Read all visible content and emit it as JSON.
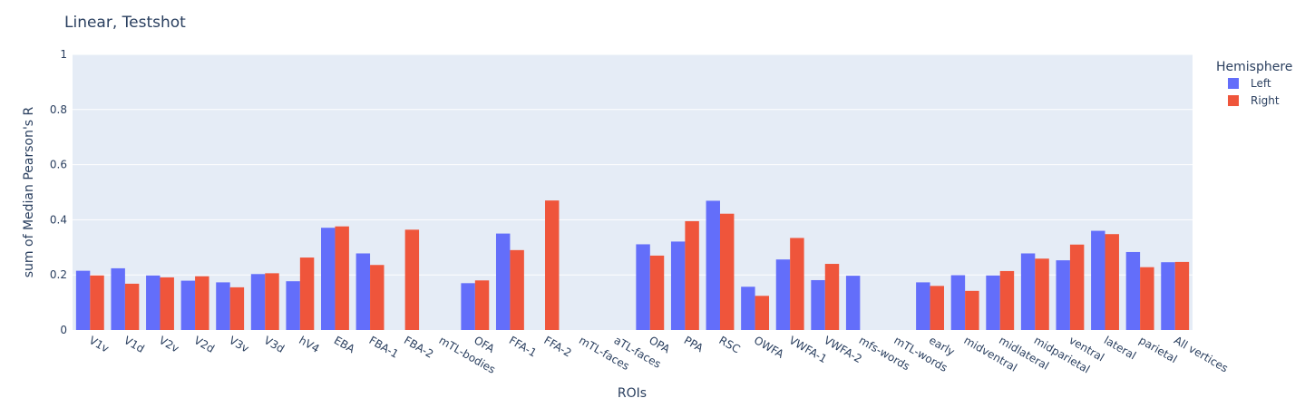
{
  "chart_data": {
    "type": "bar",
    "title": "Linear, Testshot",
    "xlabel": "ROIs",
    "ylabel": "sum of Median Pearson's R",
    "ylim": [
      0,
      1
    ],
    "yticks": [
      0,
      0.2,
      0.4,
      0.6,
      0.8,
      1
    ],
    "ytick_labels": [
      "0",
      "0.2",
      "0.4",
      "0.6",
      "0.8",
      "1"
    ],
    "grid": true,
    "legend_title": "Hemisphere",
    "legend_position": "top-right",
    "categories": [
      "V1v",
      "V1d",
      "V2v",
      "V2d",
      "V3v",
      "V3d",
      "hV4",
      "EBA",
      "FBA-1",
      "FBA-2",
      "mTL-bodies",
      "OFA",
      "FFA-1",
      "FFA-2",
      "mTL-faces",
      "aTL-faces",
      "OPA",
      "PPA",
      "RSC",
      "OWFA",
      "VWFA-1",
      "VWFA-2",
      "mfs-words",
      "mTL-words",
      "early",
      "midventral",
      "midlateral",
      "midparietal",
      "ventral",
      "lateral",
      "parietal",
      "All vertices"
    ],
    "series": [
      {
        "name": "Left",
        "color": "#636efa",
        "values": [
          0.215,
          0.224,
          0.198,
          0.179,
          0.173,
          0.203,
          0.177,
          0.371,
          0.278,
          null,
          null,
          0.17,
          0.35,
          null,
          null,
          null,
          0.311,
          0.321,
          0.469,
          0.157,
          0.256,
          0.181,
          0.197,
          null,
          0.173,
          0.199,
          0.198,
          0.278,
          0.253,
          0.36,
          0.283,
          0.246
        ]
      },
      {
        "name": "Right",
        "color": "#ef553b",
        "values": [
          0.198,
          0.168,
          0.191,
          0.195,
          0.155,
          0.206,
          0.263,
          0.376,
          0.236,
          0.364,
          null,
          0.18,
          0.29,
          0.47,
          null,
          null,
          0.27,
          0.395,
          0.422,
          0.124,
          0.334,
          0.24,
          null,
          null,
          0.16,
          0.142,
          0.214,
          0.259,
          0.31,
          0.348,
          0.228,
          0.247
        ]
      }
    ]
  }
}
